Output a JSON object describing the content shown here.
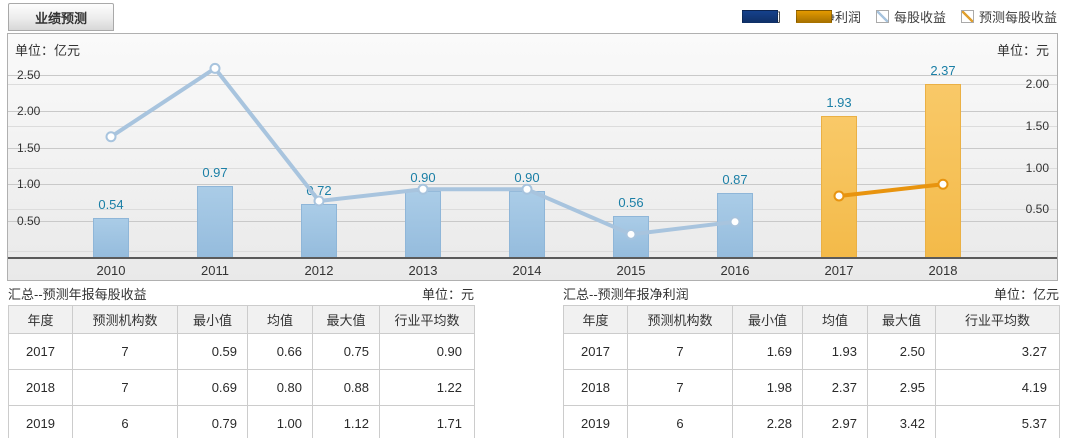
{
  "tab": {
    "label": "业绩预测"
  },
  "legend": [
    {
      "label": "净利润",
      "type": "bar",
      "color": "#15418c"
    },
    {
      "label": "预测净利润",
      "type": "bar",
      "color": "#e39a00"
    },
    {
      "label": "每股收益",
      "type": "line",
      "color": "#a8c4de"
    },
    {
      "label": "预测每股收益",
      "type": "line",
      "color": "#e0a030"
    }
  ],
  "chart": {
    "unit_left": "单位：亿元",
    "unit_right": "单位：元"
  },
  "chart_data": {
    "type": "bar+line (dual axis)",
    "categories": [
      "2010",
      "2011",
      "2012",
      "2013",
      "2014",
      "2015",
      "2016",
      "2017",
      "2018"
    ],
    "series": [
      {
        "name": "净利润",
        "type": "bar",
        "axis": "left",
        "unit": "亿元",
        "values": [
          0.54,
          0.97,
          0.72,
          0.9,
          0.9,
          0.56,
          0.87,
          null,
          null
        ],
        "labels": [
          "0.54",
          "0.97",
          "0.72",
          "0.90",
          "0.90",
          "0.56",
          "0.87"
        ],
        "color": "#9dc3e1"
      },
      {
        "name": "预测净利润",
        "type": "bar",
        "axis": "left",
        "unit": "亿元",
        "values": [
          null,
          null,
          null,
          null,
          null,
          null,
          null,
          1.93,
          2.37
        ],
        "labels": [
          "1.93",
          "2.37"
        ],
        "color": "#f6c159"
      },
      {
        "name": "每股收益",
        "type": "line",
        "axis": "right",
        "unit": "元",
        "values": [
          1.37,
          2.19,
          0.6,
          0.74,
          0.74,
          0.2,
          0.35,
          null,
          null
        ],
        "color": "#a8c4de"
      },
      {
        "name": "预测每股收益",
        "type": "line",
        "axis": "right",
        "unit": "元",
        "values": [
          null,
          null,
          null,
          null,
          null,
          null,
          null,
          0.66,
          0.8
        ],
        "color": "#e8940f"
      }
    ],
    "left_axis": {
      "title": "单位：亿元",
      "ticks": [
        0.5,
        1.0,
        1.5,
        2.0,
        2.5
      ],
      "tick_labels": [
        "0.50",
        "1.00",
        "1.50",
        "2.00",
        "2.50"
      ],
      "min": 0,
      "max": 3.0,
      "grid": true
    },
    "right_axis": {
      "title": "单位：元",
      "ticks": [
        0.5,
        1.0,
        1.5,
        2.0
      ],
      "tick_labels": [
        "0.50",
        "1.00",
        "1.50",
        "2.00"
      ],
      "min": 0,
      "max": 2.6,
      "grid": true
    },
    "legend_position": "top-right"
  },
  "tables": [
    {
      "title": "汇总--预测年报每股收益",
      "unit": "单位：元",
      "headers": [
        "年度",
        "预测机构数",
        "最小值",
        "均值",
        "最大值",
        "行业平均数"
      ],
      "rows": [
        [
          "2017",
          "7",
          "0.59",
          "0.66",
          "0.75",
          "0.90"
        ],
        [
          "2018",
          "7",
          "0.69",
          "0.80",
          "0.88",
          "1.22"
        ],
        [
          "2019",
          "6",
          "0.79",
          "1.00",
          "1.12",
          "1.71"
        ]
      ]
    },
    {
      "title": "汇总--预测年报净利润",
      "unit": "单位：亿元",
      "headers": [
        "年度",
        "预测机构数",
        "最小值",
        "均值",
        "最大值",
        "行业平均数"
      ],
      "rows": [
        [
          "2017",
          "7",
          "1.69",
          "1.93",
          "2.50",
          "3.27"
        ],
        [
          "2018",
          "7",
          "1.98",
          "2.37",
          "2.95",
          "4.19"
        ],
        [
          "2019",
          "6",
          "2.28",
          "2.97",
          "3.42",
          "5.37"
        ]
      ]
    }
  ]
}
